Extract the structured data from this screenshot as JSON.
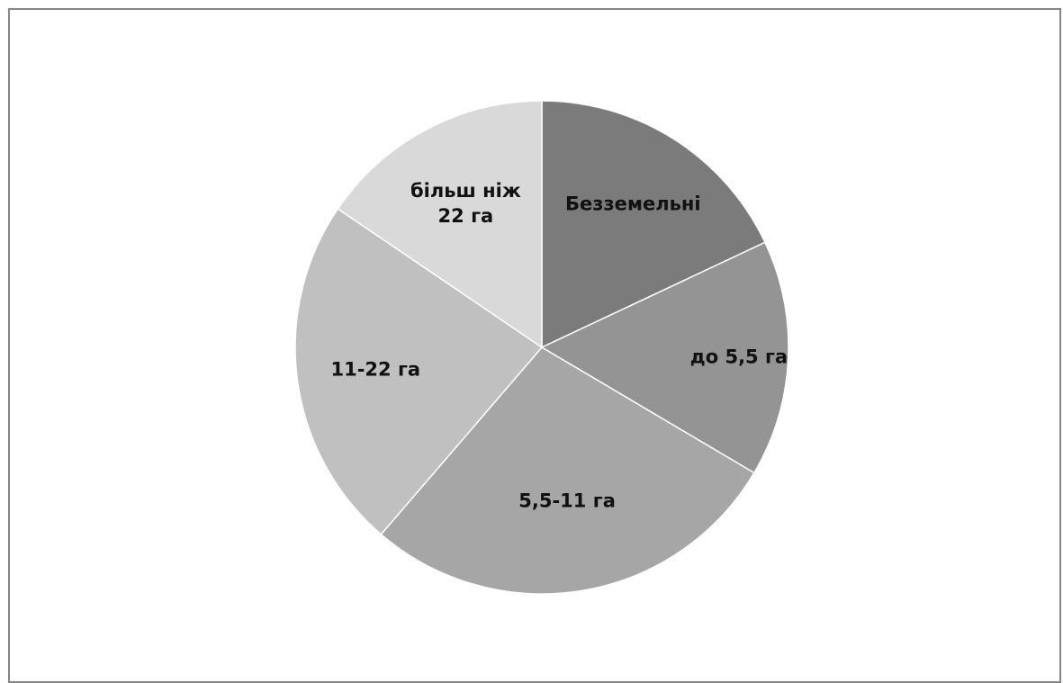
{
  "chart_data": {
    "type": "pie",
    "title": "",
    "slices": [
      {
        "label": "Безземельні",
        "label_lines": [
          "Безземельні"
        ],
        "percent": 18.0,
        "color": "#7b7b7b"
      },
      {
        "label": "до 5,5 га",
        "label_lines": [
          "до 5,5 га"
        ],
        "percent": 15.5,
        "color": "#949494"
      },
      {
        "label": "5,5-11 га",
        "label_lines": [
          "5,5-11 га"
        ],
        "percent": 27.8,
        "color": "#a6a6a6"
      },
      {
        "label": "11-22 га",
        "label_lines": [
          "11-22 га"
        ],
        "percent": 23.2,
        "color": "#c0c0c0"
      },
      {
        "label": "більш ніж 22 га",
        "label_lines": [
          "більш ніж",
          "22 га"
        ],
        "percent": 15.5,
        "color": "#d9d9d9"
      }
    ],
    "start_angle": "12 o'clock",
    "direction": "clockwise",
    "legend": "none",
    "labels": "inside slices"
  }
}
